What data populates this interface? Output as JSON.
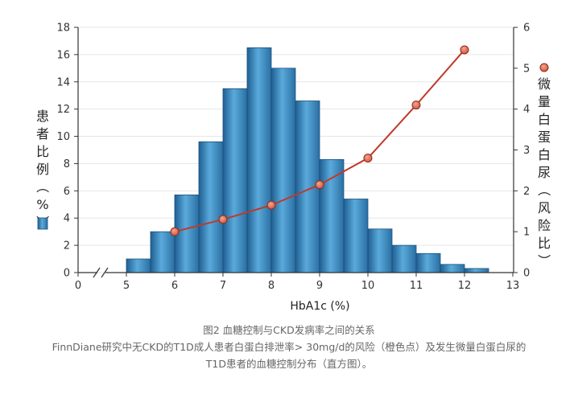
{
  "chart_data": {
    "type": "bar",
    "xlabel": "HbA1c (%)",
    "ylabel": "患者比例（%）",
    "y2label": "微量白蛋白尿（风险比）",
    "xlim": [
      0,
      13
    ],
    "ylim": [
      0,
      18
    ],
    "y2lim": [
      0,
      6
    ],
    "x_ticks": [
      "0",
      "5",
      "6",
      "7",
      "8",
      "9",
      "10",
      "11",
      "12",
      "13"
    ],
    "y_ticks": [
      "0",
      "2",
      "4",
      "6",
      "8",
      "10",
      "12",
      "14",
      "16",
      "18"
    ],
    "y2_ticks": [
      "0",
      "1",
      "2",
      "3",
      "4",
      "5",
      "6"
    ],
    "x_axis_break": true,
    "bar_width": 0.5,
    "histogram": {
      "bin_centers": [
        5.25,
        5.75,
        6.25,
        6.75,
        7.25,
        7.75,
        8.25,
        8.75,
        9.25,
        9.75,
        10.25,
        10.75,
        11.25,
        11.75,
        12.25
      ],
      "values": [
        1.0,
        3.0,
        5.7,
        9.6,
        13.5,
        16.5,
        15.0,
        12.6,
        8.3,
        5.4,
        3.2,
        2.0,
        1.4,
        0.6,
        0.3
      ],
      "color": "#3a8cc8"
    },
    "risk_series": {
      "x": [
        6,
        7,
        8,
        9,
        10,
        11,
        12
      ],
      "y": [
        1.0,
        1.3,
        1.65,
        2.15,
        2.8,
        4.1,
        5.45
      ],
      "color": "#c0392b",
      "marker_color": "#e07a5f"
    },
    "legend": {
      "histogram_marker_placement": "left",
      "risk_marker_placement": "right"
    }
  },
  "caption": {
    "title": "图2  血糖控制与CKD发病率之间的关系",
    "line1": "FinnDiane研究中无CKD的T1D成人患者白蛋白排泄率> 30mg/d的风险（橙色点）及发生微量白蛋白尿的",
    "line2": "T1D患者的血糖控制分布（直方图）。"
  }
}
